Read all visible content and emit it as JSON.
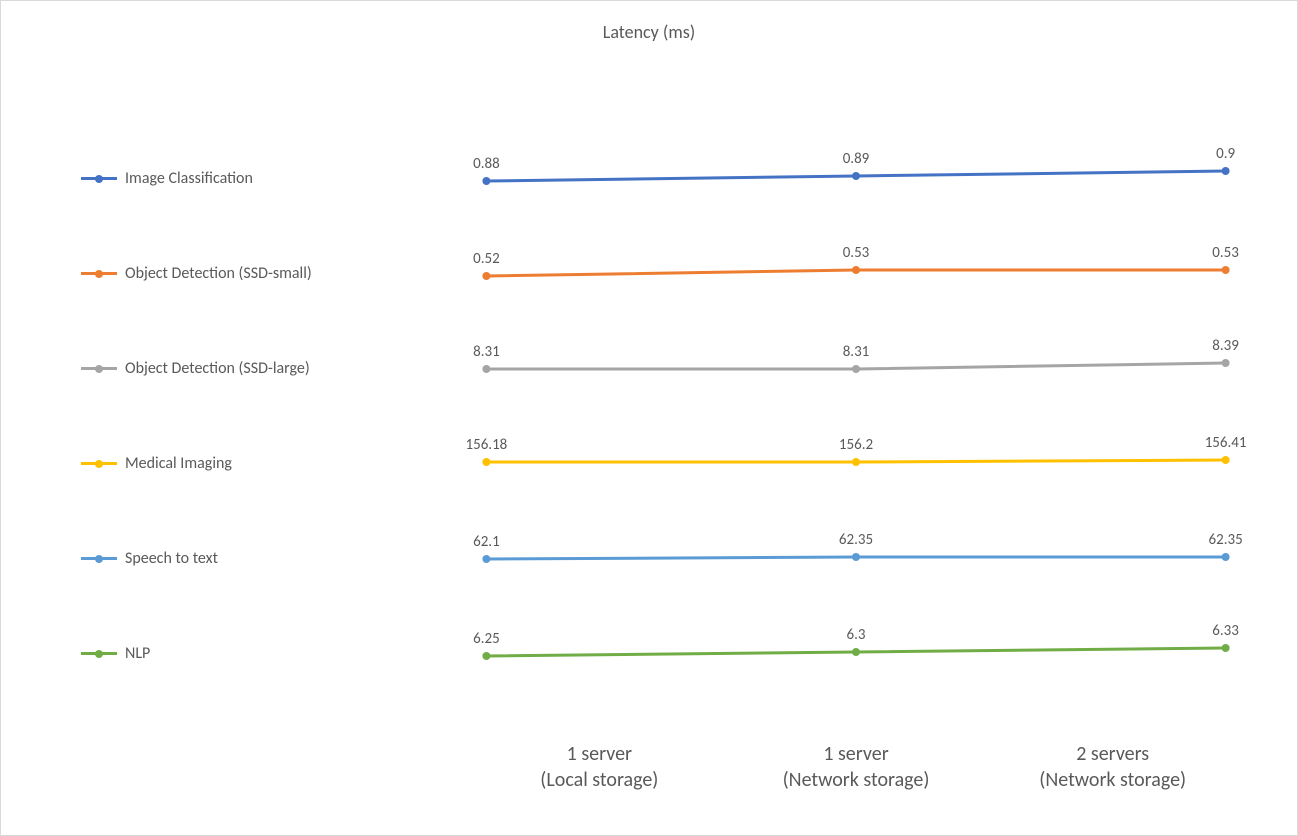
{
  "title": "Latency (ms)",
  "title_fontsize": 18,
  "title_color": "#595959",
  "background_color": "#ffffff",
  "border_color": "#d9d9d9",
  "label_fontsize": 15,
  "legend_fontsize": 16,
  "xlabel_fontsize": 20,
  "text_color": "#595959",
  "line_width": 3,
  "marker_size": 8,
  "marker_style": "circle",
  "x_positions_pct": [
    2,
    50,
    98
  ],
  "categories": [
    {
      "label_line1": "1 server",
      "label_line2": "(Local storage)"
    },
    {
      "label_line1": "1 server",
      "label_line2": "(Network storage)"
    },
    {
      "label_line1": "2 servers",
      "label_line2": "(Network storage)"
    }
  ],
  "series": [
    {
      "name": "Image Classification",
      "color": "#4472c4",
      "values": [
        0.88,
        0.89,
        0.9
      ],
      "display": [
        "0.88",
        "0.89",
        "0.9"
      ],
      "y_offsets": [
        50,
        45,
        40
      ]
    },
    {
      "name": "Object Detection (SSD-small)",
      "color": "#ed7d31",
      "values": [
        0.52,
        0.53,
        0.53
      ],
      "display": [
        "0.52",
        "0.53",
        "0.53"
      ],
      "y_offsets": [
        50,
        44,
        44
      ]
    },
    {
      "name": "Object Detection (SSD-large)",
      "color": "#a5a5a5",
      "values": [
        8.31,
        8.31,
        8.39
      ],
      "display": [
        "8.31",
        "8.31",
        "8.39"
      ],
      "y_offsets": [
        48,
        48,
        42
      ]
    },
    {
      "name": "Medical Imaging",
      "color": "#ffc000",
      "values": [
        156.18,
        156.2,
        156.41
      ],
      "display": [
        "156.18",
        "156.2",
        "156.41"
      ],
      "y_offsets": [
        46,
        46,
        44
      ]
    },
    {
      "name": "Speech to text",
      "color": "#5b9bd5",
      "values": [
        62.1,
        62.35,
        62.35
      ],
      "display": [
        "62.1",
        "62.35",
        "62.35"
      ],
      "y_offsets": [
        48,
        46,
        46
      ]
    },
    {
      "name": "NLP",
      "color": "#70ad47",
      "values": [
        6.25,
        6.3,
        6.33
      ],
      "display": [
        "6.25",
        "6.3",
        "6.33"
      ],
      "y_offsets": [
        50,
        46,
        42
      ]
    }
  ]
}
